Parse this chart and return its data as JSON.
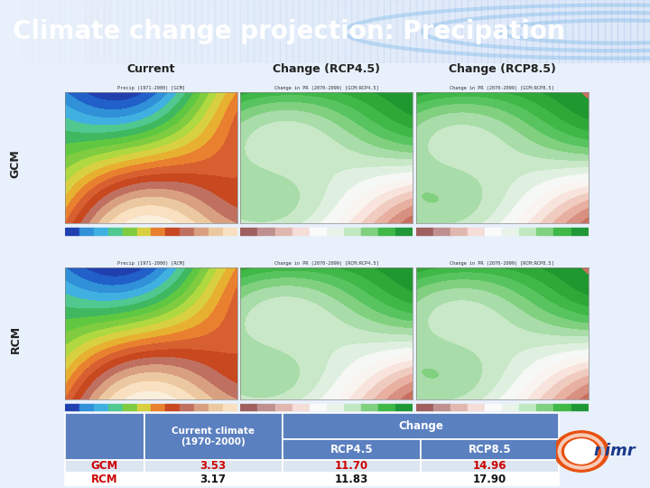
{
  "title": "Climate change projection: Precipation",
  "title_bg_color": "#1a5bbf",
  "title_text_color": "#ffffff",
  "title_fontsize": 20,
  "col_headers": [
    "Current",
    "Change (RCP4.5)",
    "Change (RCP8.5)"
  ],
  "row_headers": [
    "GCM",
    "RCM"
  ],
  "table_rows": [
    [
      "GCM",
      "3.53",
      "11.70",
      "14.96"
    ],
    [
      "RCM",
      "3.17",
      "11.83",
      "17.90"
    ]
  ],
  "table_header_bg": "#5b80c0",
  "table_header_text": "#ffffff",
  "table_row1_bg": "#dce6f1",
  "table_row2_bg": "#ffffff",
  "gcm_rcm_label_color": "#cc0000",
  "data_color": "#cc0000",
  "main_bg_color": "#e8f0fb",
  "col_header_box_bg": "#ffffff",
  "col_header_box_border": "#666666",
  "row_header_box_bg": "#ffffff",
  "row_header_box_border": "#666666"
}
